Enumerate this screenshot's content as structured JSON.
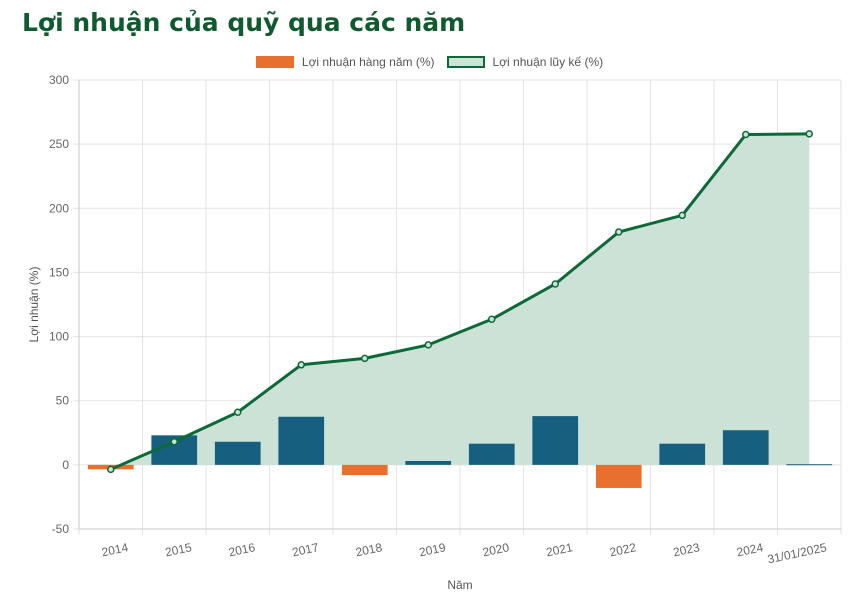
{
  "title": "Lợi nhuận của quỹ qua các năm",
  "legend": {
    "annual": "Lợi nhuận hàng năm (%)",
    "cumulative": "Lợi nhuận lũy kế (%)"
  },
  "colors": {
    "positive_bar": "#175f7f",
    "negative_bar": "#e8702f",
    "line": "#0c6a38",
    "area_fill": "#cde2d6",
    "grid": "#e3e3e3"
  },
  "chart_data": {
    "type": "bar",
    "title": "Lợi nhuận của quỹ qua các năm",
    "xlabel": "Năm",
    "ylabel": "Lợi nhuận (%)",
    "ylim": [
      -50,
      300
    ],
    "yticks": [
      -50,
      0,
      50,
      100,
      150,
      200,
      250,
      300
    ],
    "grid": true,
    "legend_position": "top",
    "categories": [
      "2014",
      "2015",
      "2016",
      "2017",
      "2018",
      "2019",
      "2020",
      "2021",
      "2022",
      "2023",
      "2024",
      "31/01/2025"
    ],
    "series": [
      {
        "name": "Lợi nhuận hàng năm (%)",
        "type": "bar",
        "values": [
          -3.5,
          23,
          18,
          37.5,
          -8,
          3,
          16.5,
          38,
          -18,
          16.5,
          27,
          0.5
        ]
      },
      {
        "name": "Lợi nhuận lũy kế (%)",
        "type": "area",
        "values": [
          -3.5,
          18,
          41,
          78,
          83,
          93.5,
          113.5,
          141,
          181.5,
          194.5,
          257.5,
          258
        ]
      }
    ]
  }
}
